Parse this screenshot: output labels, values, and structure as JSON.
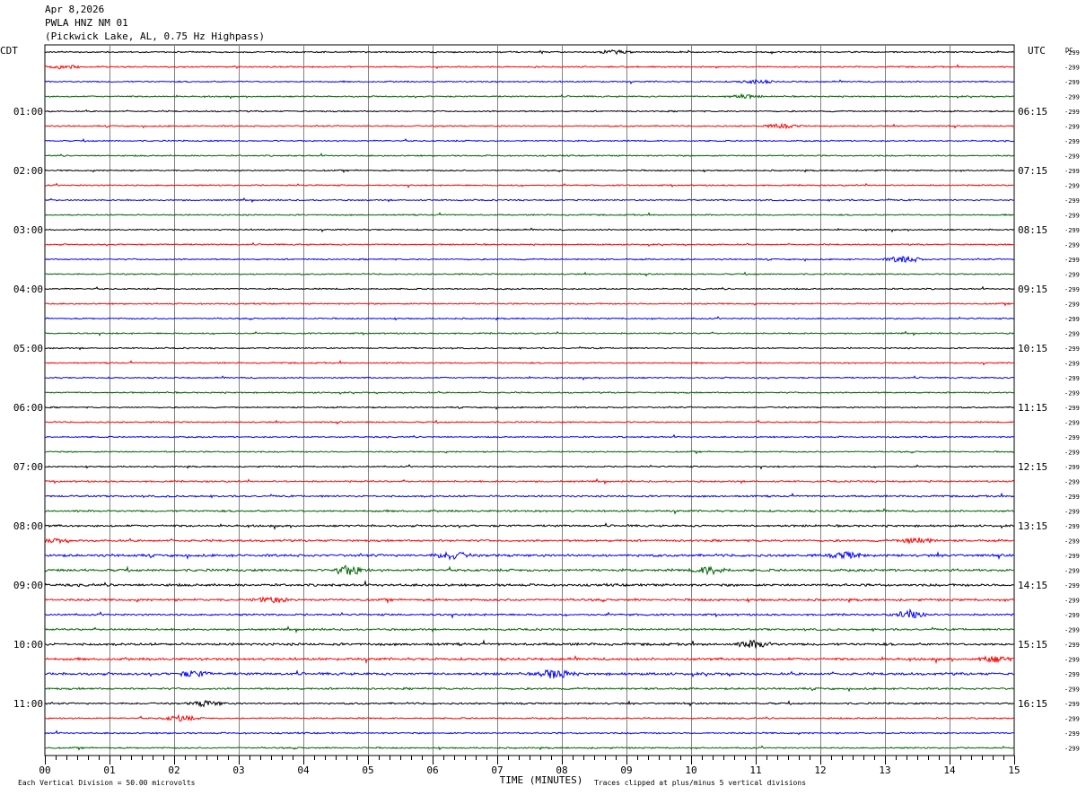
{
  "header": {
    "date": "Apr 8,2026",
    "station": "PWLA HNZ NM 01",
    "location": "(Pickwick Lake, AL, 0.75 Hz Highpass)"
  },
  "left_axis_label": "CDT",
  "right_axis_label": "UTC",
  "dc_label": "DC",
  "footer": {
    "scale_note": "Each Vertical Division =   50.00 microvolts",
    "xlabel": "TIME (MINUTES)",
    "clip_note": "Traces clipped at plus/minus 5 vertical divisions"
  },
  "colors": {
    "trace_cycle": [
      "#000000",
      "#ff0000",
      "#0000ff",
      "#006400"
    ],
    "grid": "#808080"
  },
  "chart_data": {
    "type": "line",
    "subtype": "helicorder",
    "trace_minutes": 15,
    "trace_count": 48,
    "dc_offsets": [
      "-299",
      "-299",
      "-299",
      "-299",
      "-299",
      "-299",
      "-299",
      "-299",
      "-299",
      "-299",
      "-299",
      "-299",
      "-299",
      "-299",
      "-299",
      "-299",
      "-299",
      "-299",
      "-299",
      "-299",
      "-299",
      "-299",
      "-299",
      "-299",
      "-299",
      "-299",
      "-299",
      "-299",
      "-299",
      "-299",
      "-299",
      "-299",
      "-299",
      "-299",
      "-299",
      "-299",
      "-299",
      "-299",
      "-299",
      "-299",
      "-299",
      "-299",
      "-299",
      "-299",
      "-299",
      "-299",
      "-299",
      "-299"
    ],
    "left_tick_labels": [
      "01:00",
      "02:00",
      "03:00",
      "04:00",
      "05:00",
      "06:00",
      "07:00",
      "08:00",
      "09:00",
      "10:00",
      "11:00"
    ],
    "right_tick_labels": [
      "06:15",
      "07:15",
      "08:15",
      "09:15",
      "10:15",
      "11:15",
      "12:15",
      "13:15",
      "14:15",
      "15:15",
      "16:15"
    ],
    "hour_label_trace_indices": [
      4,
      8,
      12,
      16,
      20,
      24,
      28,
      32,
      36,
      40,
      44
    ],
    "x_tick_labels": [
      "00",
      "01",
      "02",
      "03",
      "04",
      "05",
      "06",
      "07",
      "08",
      "09",
      "10",
      "11",
      "12",
      "13",
      "14",
      "15"
    ],
    "xlim": [
      0,
      15
    ],
    "noise_level": [
      1.0,
      1.0,
      1.0,
      1.0,
      1.0,
      1.0,
      1.0,
      1.0,
      1.0,
      1.0,
      1.0,
      1.0,
      1.0,
      1.0,
      1.0,
      1.0,
      1.0,
      1.0,
      1.0,
      1.0,
      1.0,
      1.0,
      1.0,
      1.0,
      1.0,
      1.0,
      1.0,
      1.0,
      1.0,
      1.2,
      1.3,
      1.4,
      1.5,
      1.5,
      1.8,
      1.8,
      1.8,
      1.6,
      1.4,
      1.4,
      1.8,
      1.8,
      1.8,
      1.4,
      1.3,
      1.1,
      1.1,
      1.1
    ],
    "events": [
      {
        "trace": 0,
        "minute": 8.8,
        "amplitude": 2
      },
      {
        "trace": 1,
        "minute": 0.3,
        "amplitude": 2
      },
      {
        "trace": 2,
        "minute": 11.0,
        "amplitude": 2
      },
      {
        "trace": 3,
        "minute": 10.8,
        "amplitude": 2
      },
      {
        "trace": 5,
        "minute": 11.4,
        "amplitude": 2
      },
      {
        "trace": 14,
        "minute": 13.3,
        "amplitude": 4
      },
      {
        "trace": 33,
        "minute": 0.1,
        "amplitude": 2
      },
      {
        "trace": 33,
        "minute": 13.5,
        "amplitude": 3
      },
      {
        "trace": 34,
        "minute": 6.3,
        "amplitude": 4
      },
      {
        "trace": 34,
        "minute": 12.4,
        "amplitude": 3
      },
      {
        "trace": 35,
        "minute": 4.7,
        "amplitude": 5
      },
      {
        "trace": 35,
        "minute": 10.3,
        "amplitude": 4
      },
      {
        "trace": 37,
        "minute": 3.5,
        "amplitude": 3
      },
      {
        "trace": 38,
        "minute": 13.4,
        "amplitude": 4
      },
      {
        "trace": 40,
        "minute": 11.0,
        "amplitude": 4
      },
      {
        "trace": 41,
        "minute": 14.7,
        "amplitude": 3
      },
      {
        "trace": 42,
        "minute": 7.9,
        "amplitude": 5
      },
      {
        "trace": 42,
        "minute": 2.3,
        "amplitude": 3
      },
      {
        "trace": 44,
        "minute": 2.5,
        "amplitude": 3
      },
      {
        "trace": 45,
        "minute": 2.1,
        "amplitude": 3
      }
    ]
  }
}
